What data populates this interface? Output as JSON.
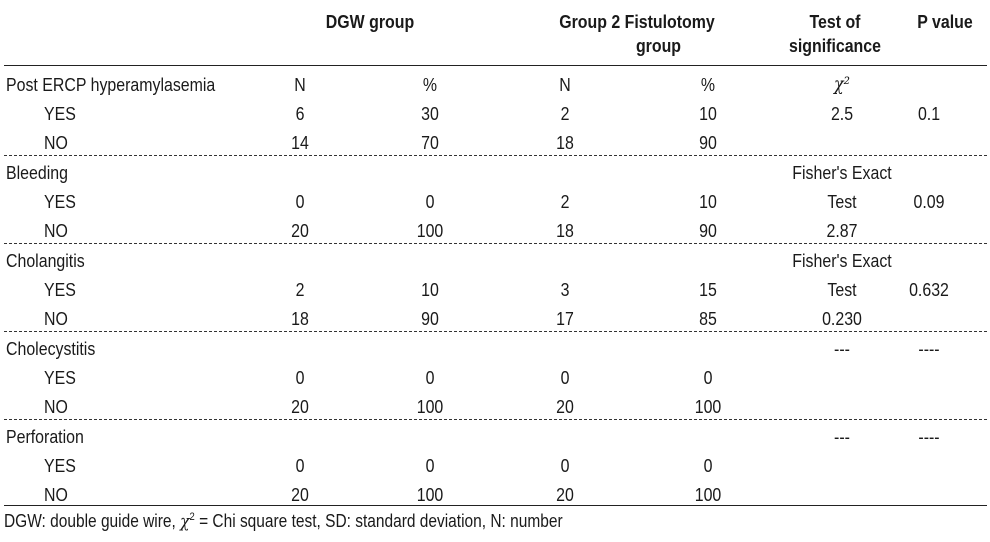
{
  "table": {
    "headers": {
      "dgw_group": "DGW group",
      "fist_group_l1": "Group 2 Fistulotomy",
      "fist_group_l2": "group",
      "test_l1": "Test of",
      "test_l2": "significance",
      "p_value": "P value"
    },
    "sections": [
      {
        "label": "Post ERCP hyperamylasemia",
        "label_row": {
          "dgw_n": "N",
          "dgw_pct": "%",
          "fist_n": "N",
          "fist_pct": "%",
          "test": "χ²",
          "p": ""
        },
        "yes": {
          "label": "YES",
          "dgw_n": "6",
          "dgw_pct": "30",
          "fist_n": "2",
          "fist_pct": "10",
          "test": "2.5",
          "p": "0.1"
        },
        "no": {
          "label": "NO",
          "dgw_n": "14",
          "dgw_pct": "70",
          "fist_n": "18",
          "fist_pct": "90",
          "test": "",
          "p": ""
        }
      },
      {
        "label": "Bleeding",
        "label_row": {
          "dgw_n": "",
          "dgw_pct": "",
          "fist_n": "",
          "fist_pct": "",
          "test": "Fisher's Exact",
          "p": ""
        },
        "yes": {
          "label": "YES",
          "dgw_n": "0",
          "dgw_pct": "0",
          "fist_n": "2",
          "fist_pct": "10",
          "test": "Test",
          "p": "0.09"
        },
        "no": {
          "label": "NO",
          "dgw_n": "20",
          "dgw_pct": "100",
          "fist_n": "18",
          "fist_pct": "90",
          "test": "2.87",
          "p": ""
        }
      },
      {
        "label": "Cholangitis",
        "label_row": {
          "dgw_n": "",
          "dgw_pct": "",
          "fist_n": "",
          "fist_pct": "",
          "test": "Fisher's Exact",
          "p": ""
        },
        "yes": {
          "label": "YES",
          "dgw_n": "2",
          "dgw_pct": "10",
          "fist_n": "3",
          "fist_pct": "15",
          "test": "Test",
          "p": "0.632"
        },
        "no": {
          "label": "NO",
          "dgw_n": "18",
          "dgw_pct": "90",
          "fist_n": "17",
          "fist_pct": "85",
          "test": "0.230",
          "p": ""
        }
      },
      {
        "label": "Cholecystitis",
        "label_row": {
          "dgw_n": "",
          "dgw_pct": "",
          "fist_n": "",
          "fist_pct": "",
          "test": "---",
          "p": "----"
        },
        "yes": {
          "label": "YES",
          "dgw_n": "0",
          "dgw_pct": "0",
          "fist_n": "0",
          "fist_pct": "0",
          "test": "",
          "p": ""
        },
        "no": {
          "label": "NO",
          "dgw_n": "20",
          "dgw_pct": "100",
          "fist_n": "20",
          "fist_pct": "100",
          "test": "",
          "p": ""
        }
      },
      {
        "label": "Perforation",
        "label_row": {
          "dgw_n": "",
          "dgw_pct": "",
          "fist_n": "",
          "fist_pct": "",
          "test": "---",
          "p": "----"
        },
        "yes": {
          "label": "YES",
          "dgw_n": "0",
          "dgw_pct": "0",
          "fist_n": "0",
          "fist_pct": "0",
          "test": "",
          "p": ""
        },
        "no": {
          "label": "NO",
          "dgw_n": "20",
          "dgw_pct": "100",
          "fist_n": "20",
          "fist_pct": "100",
          "test": "",
          "p": ""
        }
      }
    ]
  },
  "footnote": {
    "prefix": "DGW: double guide wire, ",
    "chi": "χ",
    "sup": "2",
    "suffix": " = Chi square test, SD: standard deviation, N: number"
  }
}
